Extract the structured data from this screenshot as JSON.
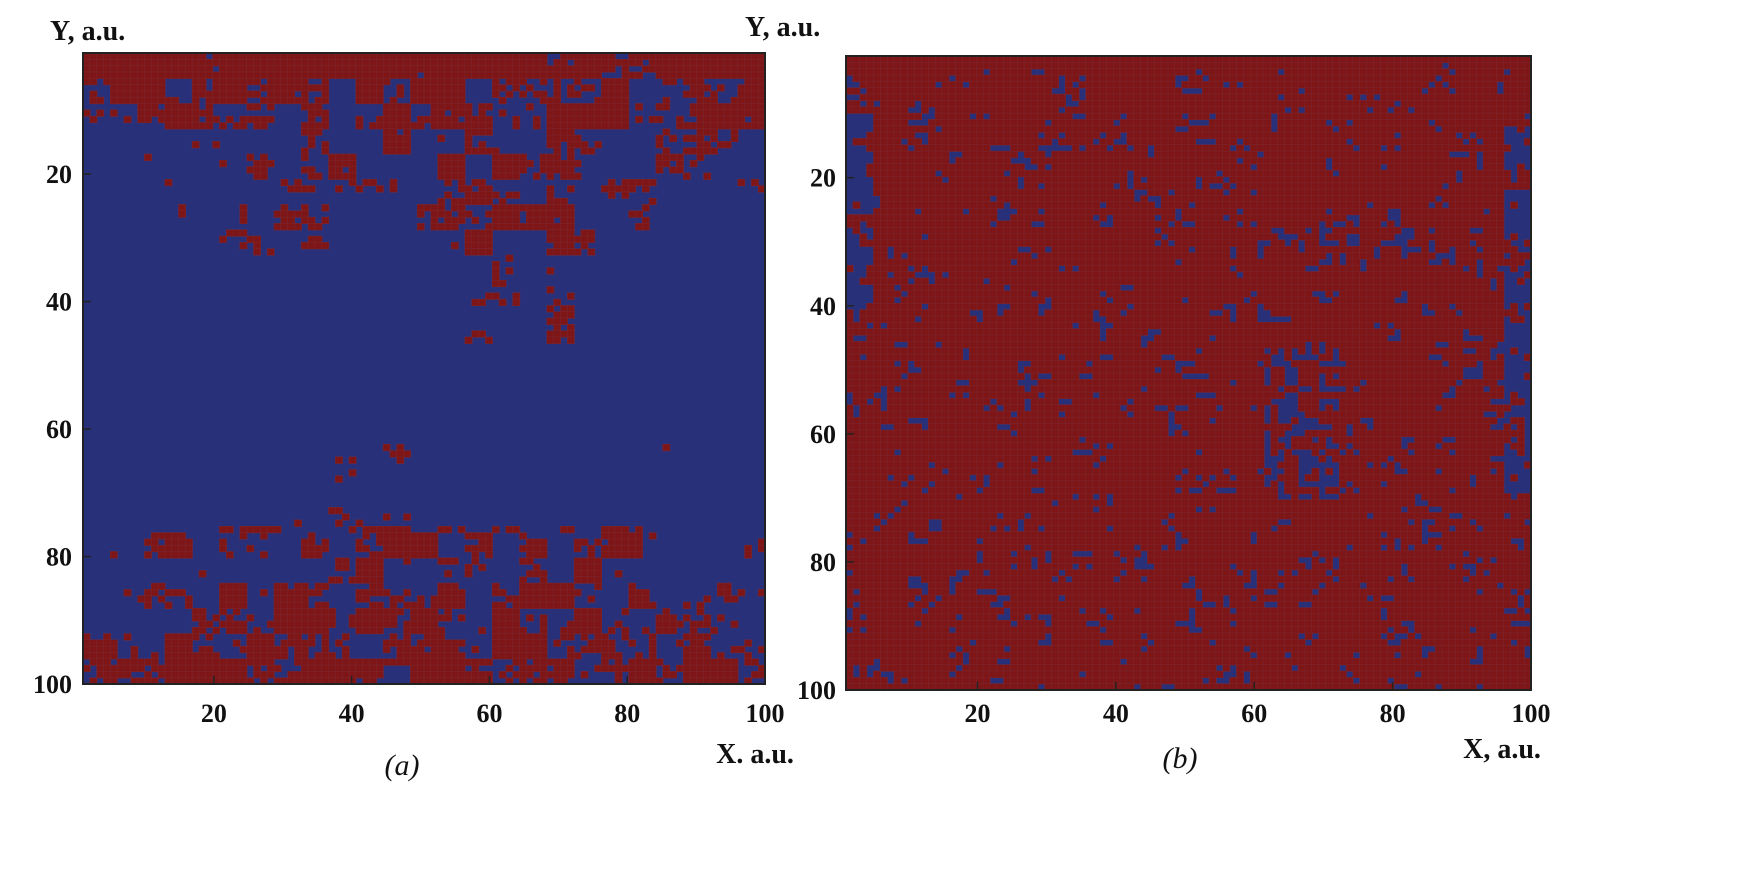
{
  "figure": {
    "panels": [
      {
        "caption": "(a)"
      },
      {
        "caption": "(b)"
      }
    ]
  },
  "colors": {
    "red": "#7e1516",
    "blue": "#29307a",
    "grid": "#7a2a33"
  },
  "chart_data": [
    {
      "type": "heatmap",
      "title": "",
      "caption": "(a)",
      "xlabel": "X. a.u.",
      "ylabel": "Y, a.u.",
      "xlim": [
        1,
        100
      ],
      "ylim": [
        1,
        100
      ],
      "y_inverted": true,
      "xticks": [
        20,
        40,
        60,
        80,
        100
      ],
      "yticks": [
        20,
        40,
        60,
        80,
        100
      ],
      "grid_size": [
        100,
        100
      ],
      "values_legend": {
        "0": "blue",
        "1": "red"
      },
      "red_fraction": 0.32,
      "description_regions": "red clusters near top (y 1-45) and bottom (y 62-100); blue elsewhere"
    },
    {
      "type": "heatmap",
      "title": "",
      "caption": "(b)",
      "xlabel": "X, a.u.",
      "ylabel": "Y, a.u.",
      "xlim": [
        1,
        100
      ],
      "ylim": [
        1,
        100
      ],
      "y_inverted": true,
      "xticks": [
        20,
        40,
        60,
        80,
        100
      ],
      "yticks": [
        20,
        40,
        60,
        80,
        100
      ],
      "grid_size": [
        100,
        100
      ],
      "values_legend": {
        "0": "blue",
        "1": "red"
      },
      "red_fraction": 0.72,
      "description_regions": "red dominates with scattered blue patches; blue regions near left edge and right edge"
    }
  ]
}
